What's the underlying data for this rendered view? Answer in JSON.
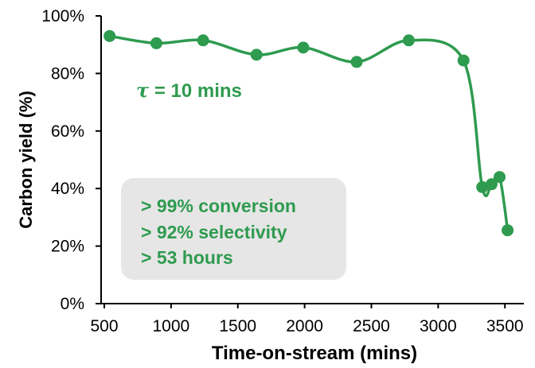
{
  "chart_data": {
    "type": "line",
    "title": "",
    "xlabel": "Time-on-stream (mins)",
    "ylabel": "Carbon yield (%)",
    "xlim": [
      500,
      3600
    ],
    "ylim": [
      0,
      100
    ],
    "x_ticks": [
      500,
      1000,
      1500,
      2000,
      2500,
      3000,
      3500
    ],
    "x_tick_labels": [
      "500",
      "1000",
      "1500",
      "2000",
      "2500",
      "3000",
      "3500"
    ],
    "y_ticks": [
      0,
      20,
      40,
      60,
      80,
      100
    ],
    "y_tick_labels": [
      "0%",
      "20%",
      "40%",
      "60%",
      "80%",
      "100%"
    ],
    "grid": false,
    "legend": "none",
    "series": [
      {
        "color": "#2e9b4f",
        "marker": "circle",
        "smooth": true,
        "x": [
          540,
          890,
          1240,
          1640,
          1990,
          2390,
          2780,
          3190,
          3330,
          3400,
          3460,
          3520
        ],
        "y": [
          93,
          90.5,
          91.5,
          86.5,
          89,
          84,
          91.5,
          84.5,
          40.5,
          41.5,
          44,
          25.5
        ]
      }
    ],
    "annotations": {
      "tau_symbol": "τ",
      "tau_text": " = 10 mins",
      "box_lines": [
        "> 99% conversion",
        "> 92% selectivity",
        "> 53 hours"
      ]
    }
  }
}
